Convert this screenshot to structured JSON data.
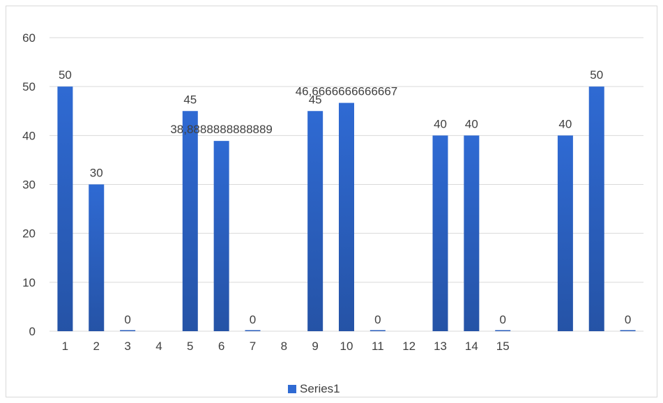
{
  "chart_data": {
    "type": "bar",
    "categories": [
      "1",
      "2",
      "3",
      "4",
      "5",
      "6",
      "7",
      "8",
      "9",
      "10",
      "11",
      "12",
      "13",
      "14",
      "15",
      "",
      "",
      "",
      ""
    ],
    "series": [
      {
        "name": "Series1",
        "values": [
          50,
          30,
          0,
          null,
          45,
          38.8888888888889,
          0,
          null,
          45,
          46.6666666666667,
          0,
          null,
          40,
          40,
          0,
          null,
          40,
          50,
          0
        ],
        "labels": [
          "50",
          "30",
          "0",
          "",
          "45",
          "38,8888888888889",
          "0",
          "",
          "45",
          "46,6666666666667",
          "0",
          "",
          "40",
          "40",
          "0",
          "",
          "40",
          "50",
          "0"
        ]
      }
    ],
    "yticks": [
      "0",
      "10",
      "20",
      "30",
      "40",
      "50",
      "60"
    ],
    "ylim": [
      0,
      60
    ],
    "grid": true,
    "legend_position": "bottom",
    "color": "#2f6ad3",
    "color_dark": "#2553a6"
  }
}
